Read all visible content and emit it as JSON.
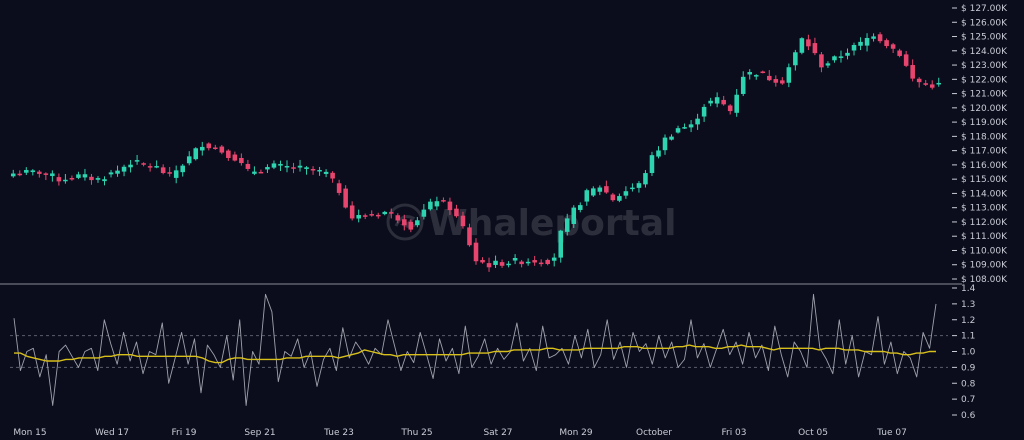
{
  "watermark": "Whaleportal",
  "colors": {
    "background": "#0b0d1c",
    "up": "#2ed3b0",
    "down": "#e8456e",
    "oscillator": "#b9bcc6",
    "moving_average": "#d8bf1c",
    "text": "#c9ccd6",
    "separator": "#8a8d96"
  },
  "chart_data": [
    {
      "type": "candlestick",
      "y_axis_position": "right",
      "y_tick_prefix": "$ ",
      "ylim": [
        108000,
        127000
      ],
      "y_ticks": [
        "108.00K",
        "109.00K",
        "110.00K",
        "111.00K",
        "112.00K",
        "113.00K",
        "114.00K",
        "115.00K",
        "116.00K",
        "117.00K",
        "118.00K",
        "119.00K",
        "120.00K",
        "121.00K",
        "122.00K",
        "123.00K",
        "124.00K",
        "125.00K",
        "126.00K",
        "127.00K"
      ],
      "x_tick_labels": [
        "Mon 15",
        "Wed 17",
        "Fri 19",
        "Sep 21",
        "Tue 23",
        "Thu 25",
        "Sat 27",
        "Mon 29",
        "October",
        "Fri 03",
        "Oct 05",
        "Tue 07"
      ],
      "close_anchors_k": [
        [
          0,
          115.4
        ],
        [
          4,
          115.5
        ],
        [
          7,
          115.0
        ],
        [
          10,
          115.2
        ],
        [
          13,
          115.0
        ],
        [
          16,
          115.6
        ],
        [
          18,
          116.2
        ],
        [
          22,
          115.8
        ],
        [
          24,
          115.2
        ],
        [
          27,
          116.5
        ],
        [
          29,
          117.5
        ],
        [
          31,
          117.2
        ],
        [
          34,
          116.5
        ],
        [
          36,
          115.5
        ],
        [
          38,
          115.7
        ],
        [
          40,
          115.9
        ],
        [
          43,
          115.8
        ],
        [
          46,
          115.6
        ],
        [
          48,
          115.4
        ],
        [
          50,
          114.2
        ],
        [
          52,
          112.3
        ],
        [
          55,
          112.5
        ],
        [
          57,
          112.7
        ],
        [
          59,
          112.3
        ],
        [
          61,
          111.7
        ],
        [
          63,
          112.8
        ],
        [
          65,
          113.6
        ],
        [
          67,
          113.0
        ],
        [
          69,
          111.6
        ],
        [
          71,
          109.3
        ],
        [
          73,
          109.0
        ],
        [
          76,
          109.2
        ],
        [
          79,
          109.3
        ],
        [
          82,
          109.3
        ],
        [
          83,
          109.6
        ],
        [
          84,
          111.2
        ],
        [
          86,
          112.8
        ],
        [
          88,
          114.0
        ],
        [
          90,
          114.5
        ],
        [
          92,
          113.6
        ],
        [
          94,
          114.2
        ],
        [
          96,
          114.6
        ],
        [
          98,
          116.5
        ],
        [
          100,
          117.8
        ],
        [
          102,
          118.6
        ],
        [
          104,
          118.7
        ],
        [
          106,
          120.2
        ],
        [
          108,
          120.6
        ],
        [
          110,
          119.8
        ],
        [
          112,
          122.3
        ],
        [
          114,
          122.5
        ],
        [
          116,
          122.1
        ],
        [
          118,
          121.9
        ],
        [
          120,
          123.8
        ],
        [
          121,
          124.8
        ],
        [
          122,
          124.4
        ],
        [
          124,
          123.0
        ],
        [
          126,
          123.4
        ],
        [
          128,
          124.0
        ],
        [
          130,
          124.5
        ],
        [
          132,
          125.2
        ],
        [
          134,
          124.5
        ],
        [
          136,
          123.8
        ],
        [
          138,
          122.0
        ],
        [
          140,
          121.6
        ],
        [
          142,
          121.6
        ]
      ]
    },
    {
      "type": "line",
      "ylim": [
        0.6,
        1.4
      ],
      "y_ticks": [
        "0.6",
        "0.7",
        "0.8",
        "0.9",
        "1.0",
        "1.1",
        "1.2",
        "1.3",
        "1.4"
      ],
      "reference_lines": [
        0.9,
        1.1
      ],
      "series": [
        {
          "style": "oscillator",
          "values": [
            1.21,
            0.88,
            1.0,
            1.02,
            0.84,
            0.98,
            0.66,
            1.0,
            1.04,
            0.97,
            0.9,
            1.0,
            1.02,
            0.88,
            1.2,
            1.05,
            0.92,
            1.12,
            0.94,
            1.06,
            0.86,
            1.0,
            0.98,
            1.18,
            0.8,
            0.96,
            1.12,
            0.92,
            1.08,
            0.74,
            1.04,
            0.98,
            0.9,
            1.1,
            0.82,
            1.2,
            0.66,
            1.0,
            0.92,
            1.36,
            1.25,
            0.81,
            1.0,
            0.97,
            1.08,
            0.9,
            1.0,
            0.78,
            0.95,
            1.02,
            0.88,
            1.15,
            0.96,
            1.06,
            1.0,
            0.92,
            1.02,
            0.98,
            1.2,
            1.04,
            0.88,
            1.0,
            0.93,
            1.12,
            0.98,
            0.83,
            1.08,
            0.94,
            1.02,
            0.86,
            1.16,
            0.9,
            0.97,
            1.08,
            0.92,
            1.02,
            0.95,
            1.0,
            1.18,
            0.94,
            1.02,
            0.88,
            1.16,
            0.96,
            0.98,
            1.02,
            0.92,
            1.1,
            0.96,
            1.14,
            0.9,
            0.98,
            1.2,
            0.95,
            1.06,
            0.9,
            1.12,
            1.0,
            1.05,
            0.92,
            1.1,
            0.96,
            1.06,
            0.9,
            0.95,
            1.2,
            0.96,
            1.05,
            0.9,
            1.02,
            1.14,
            0.98,
            1.06,
            0.92,
            1.12,
            0.96,
            1.04,
            0.88,
            1.16,
            0.98,
            0.84,
            1.06,
            1.0,
            0.9,
            1.36,
            1.02,
            0.95,
            0.86,
            1.2,
            0.92,
            1.1,
            0.84,
            1.0,
            0.98,
            1.22,
            0.92,
            1.06,
            0.86,
            1.0,
            0.96,
            0.84,
            1.12,
            1.02,
            1.3
          ]
        },
        {
          "style": "moving_average",
          "values": [
            0.99,
            0.99,
            0.97,
            0.96,
            0.95,
            0.94,
            0.94,
            0.94,
            0.95,
            0.95,
            0.96,
            0.96,
            0.96,
            0.96,
            0.97,
            0.97,
            0.98,
            0.98,
            0.98,
            0.97,
            0.97,
            0.97,
            0.97,
            0.97,
            0.97,
            0.97,
            0.97,
            0.97,
            0.97,
            0.96,
            0.94,
            0.93,
            0.93,
            0.95,
            0.96,
            0.96,
            0.95,
            0.95,
            0.95,
            0.95,
            0.95,
            0.95,
            0.96,
            0.96,
            0.96,
            0.97,
            0.97,
            0.97,
            0.97,
            0.97,
            0.96,
            0.97,
            0.98,
            0.99,
            1.01,
            1.0,
            0.99,
            0.98,
            0.98,
            0.97,
            0.98,
            0.98,
            0.98,
            0.98,
            0.98,
            0.98,
            0.98,
            0.98,
            0.98,
            0.98,
            0.99,
            0.99,
            0.99,
            0.99,
            1.0,
            1.0,
            1.0,
            1.01,
            1.01,
            1.01,
            1.01,
            1.01,
            1.02,
            1.02,
            1.01,
            1.01,
            1.01,
            1.01,
            1.02,
            1.02,
            1.02,
            1.02,
            1.02,
            1.02,
            1.03,
            1.03,
            1.03,
            1.02,
            1.02,
            1.02,
            1.02,
            1.02,
            1.03,
            1.03,
            1.04,
            1.03,
            1.03,
            1.03,
            1.02,
            1.02,
            1.03,
            1.03,
            1.04,
            1.03,
            1.03,
            1.03,
            1.02,
            1.01,
            1.02,
            1.02,
            1.02,
            1.02,
            1.02,
            1.02,
            1.01,
            1.02,
            1.02,
            1.02,
            1.01,
            1.01,
            1.01,
            1.0,
            1.0,
            1.0,
            1.0,
            0.99,
            0.99,
            0.98,
            0.98,
            0.99,
            0.99,
            1.0,
            1.0
          ]
        }
      ]
    }
  ]
}
